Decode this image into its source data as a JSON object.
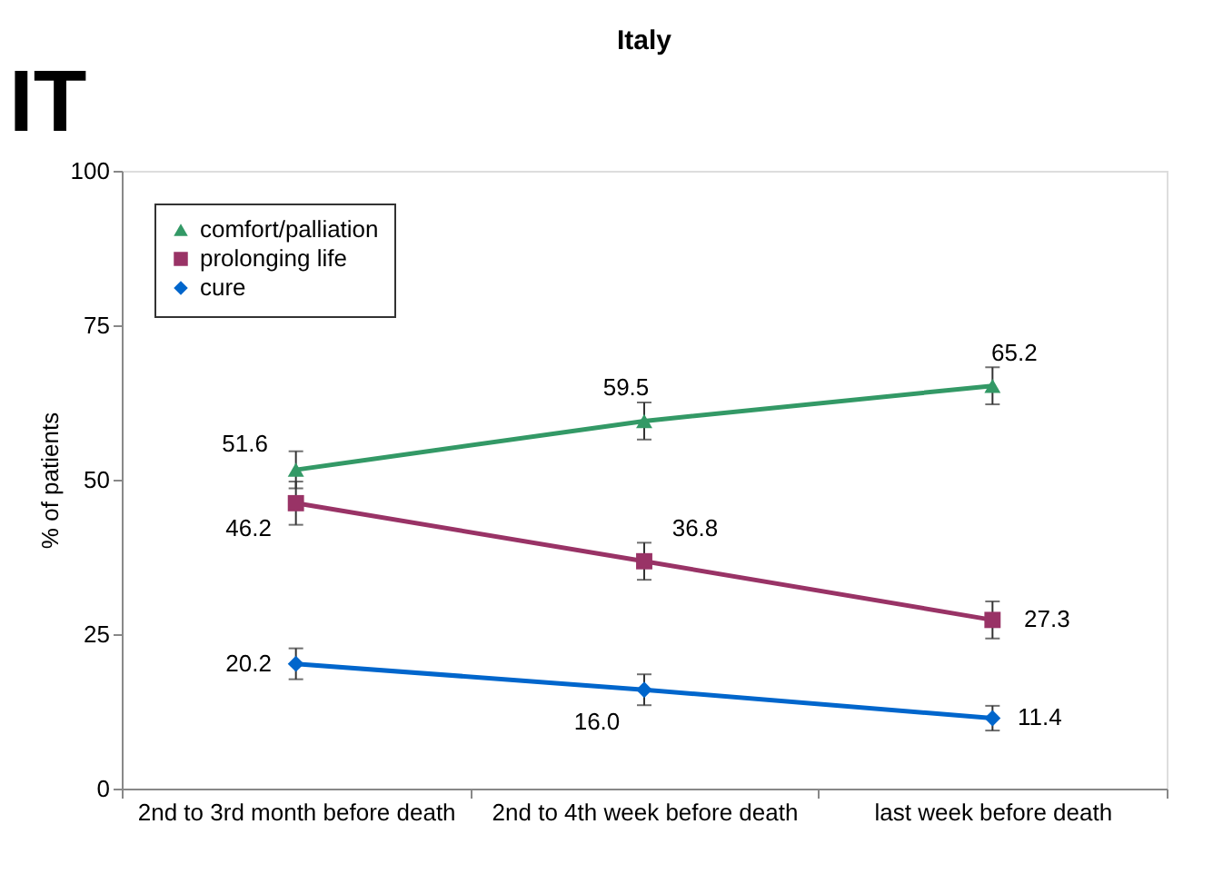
{
  "chart_data": {
    "type": "line",
    "title": "Italy",
    "ylabel": "% of patients",
    "annotations": [
      "IT"
    ],
    "categories": [
      "2nd to 3rd month before death",
      "2nd to 4th week before death",
      "last week before death"
    ],
    "series": [
      {
        "name": "comfort/palliation",
        "color": "#339966",
        "marker": "triangle",
        "values": [
          51.6,
          59.5,
          65.2
        ],
        "errors": [
          3,
          3,
          3
        ]
      },
      {
        "name": "prolonging life",
        "color": "#993366",
        "marker": "square",
        "values": [
          46.2,
          36.8,
          27.3
        ],
        "errors": [
          3.5,
          3,
          3
        ]
      },
      {
        "name": "cure",
        "color": "#0066cc",
        "marker": "diamond",
        "values": [
          20.2,
          16.0,
          11.4
        ],
        "errors": [
          2.5,
          2.5,
          2
        ],
        "value_labels": [
          "20.2",
          "16.0",
          "11.4"
        ]
      }
    ],
    "ylim": [
      0,
      100
    ],
    "yticks": [
      0,
      25,
      50,
      75,
      100
    ],
    "grid": false,
    "legend": "top left",
    "data_labels": true,
    "line_style": "solid"
  }
}
